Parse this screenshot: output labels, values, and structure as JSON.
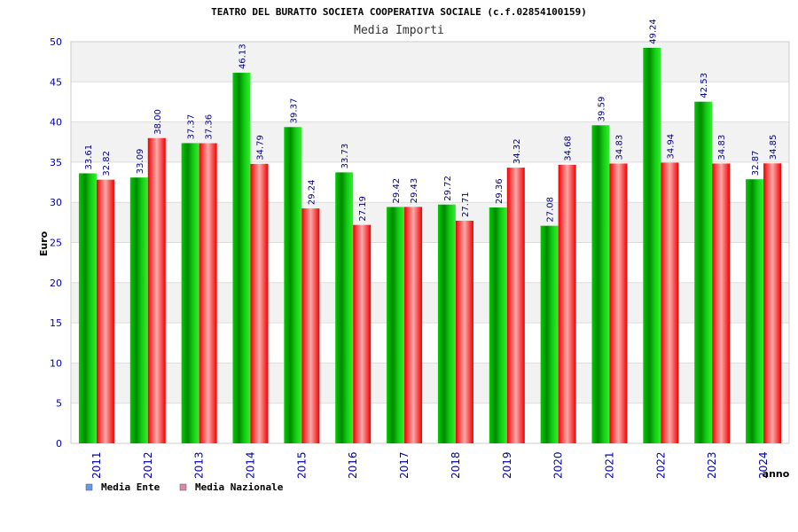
{
  "chart_data": {
    "type": "bar",
    "title": "TEATRO DEL BURATTO SOCIETA COOPERATIVA SOCIALE (c.f.02854100159)",
    "subtitle": "Media Importi",
    "xlabel": "anno",
    "ylabel": "Euro",
    "ylim": [
      0,
      50
    ],
    "yticks": [
      0,
      5,
      10,
      15,
      20,
      25,
      30,
      35,
      40,
      45,
      50
    ],
    "grid": true,
    "legend_position": "bottom-left",
    "categories": [
      "2011",
      "2012",
      "2013",
      "2014",
      "2015",
      "2016",
      "2017",
      "2018",
      "2019",
      "2020",
      "2021",
      "2022",
      "2023",
      "2024"
    ],
    "series": [
      {
        "name": "Media Ente",
        "color": "#00aa00",
        "legend_color": "#6699ee",
        "values": [
          33.61,
          33.09,
          37.37,
          46.13,
          39.37,
          33.73,
          29.42,
          29.72,
          29.36,
          27.08,
          39.59,
          49.24,
          42.53,
          32.87
        ],
        "labels": [
          "33.61",
          "33.09",
          "37.37",
          "46.13",
          "39.37",
          "33.73",
          "29.42",
          "29.72",
          "29.36",
          "27.08",
          "39.59",
          "49.24",
          "42.53",
          "32.87"
        ]
      },
      {
        "name": "Media Nazionale",
        "color": "#ee1111",
        "legend_color": "#dd88aa",
        "values": [
          32.82,
          38.0,
          37.36,
          34.79,
          29.24,
          27.19,
          29.43,
          27.71,
          34.32,
          34.68,
          34.83,
          34.94,
          34.83,
          34.85
        ],
        "labels": [
          "32.82",
          "38.00",
          "37.36",
          "34.79",
          "29.24",
          "27.19",
          "29.43",
          "27.71",
          "34.32",
          "34.68",
          "34.83",
          "34.94",
          "34.83",
          "34.85"
        ]
      }
    ]
  }
}
